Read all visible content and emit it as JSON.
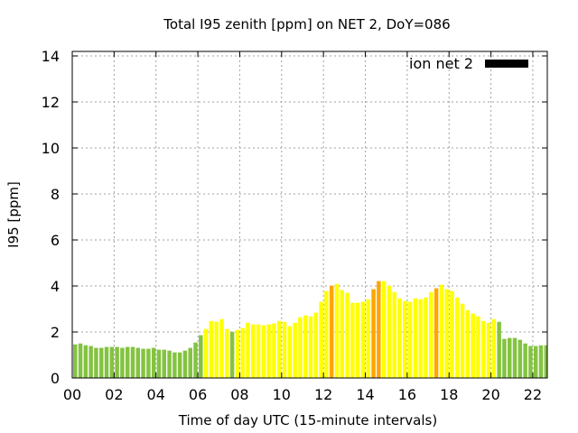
{
  "chart_data": {
    "type": "bar",
    "title": "Total I95 zenith [ppm] on NET 2, DoY=086",
    "xlabel": "Time of day UTC (15-minute intervals)",
    "ylabel": "I95 [ppm]",
    "xlim": [
      0,
      22.7
    ],
    "ylim": [
      0,
      14.2
    ],
    "grid": true,
    "x_ticks": [
      0,
      2,
      4,
      6,
      8,
      10,
      12,
      14,
      16,
      18,
      20,
      22
    ],
    "x_tick_labels": [
      "00",
      "02",
      "04",
      "06",
      "08",
      "10",
      "12",
      "14",
      "16",
      "18",
      "20",
      "22"
    ],
    "y_ticks": [
      0,
      2,
      4,
      6,
      8,
      10,
      12,
      14
    ],
    "y_tick_labels": [
      "0",
      "2",
      "4",
      "6",
      "8",
      "10",
      "12",
      "14"
    ],
    "legend": {
      "label": "ion net 2",
      "color": "#000000",
      "placement": "top-right"
    },
    "bar_interval_hours": 0.25,
    "colors": {
      "g": "#84c341",
      "y": "#ffff00",
      "o": "#ffa500"
    },
    "values": [
      1.46,
      1.5,
      1.42,
      1.39,
      1.31,
      1.31,
      1.35,
      1.35,
      1.35,
      1.31,
      1.35,
      1.35,
      1.31,
      1.27,
      1.27,
      1.31,
      1.23,
      1.23,
      1.19,
      1.11,
      1.11,
      1.19,
      1.31,
      1.54,
      1.86,
      2.13,
      2.48,
      2.44,
      2.56,
      2.13,
      2.01,
      2.09,
      2.17,
      2.4,
      2.33,
      2.33,
      2.29,
      2.33,
      2.37,
      2.48,
      2.44,
      2.25,
      2.4,
      2.64,
      2.72,
      2.68,
      2.84,
      3.31,
      3.78,
      4.01,
      4.09,
      3.82,
      3.7,
      3.27,
      3.27,
      3.31,
      3.42,
      3.86,
      4.21,
      4.21,
      4.01,
      3.74,
      3.46,
      3.35,
      3.31,
      3.46,
      3.42,
      3.5,
      3.74,
      3.9,
      4.05,
      3.86,
      3.78,
      3.5,
      3.23,
      2.95,
      2.8,
      2.68,
      2.48,
      2.4,
      2.56,
      2.44,
      1.7,
      1.74,
      1.74,
      1.66,
      1.5,
      1.39,
      1.39,
      1.42,
      1.42,
      1.42
    ],
    "bar_colors": "gggggggggggggggggggggggggyyyyygyyyyyyyyyyyyyyyyyyoyyyyyyyooyyyyyyyyyyoyyyyyyyyyyygggggggggg"
  }
}
